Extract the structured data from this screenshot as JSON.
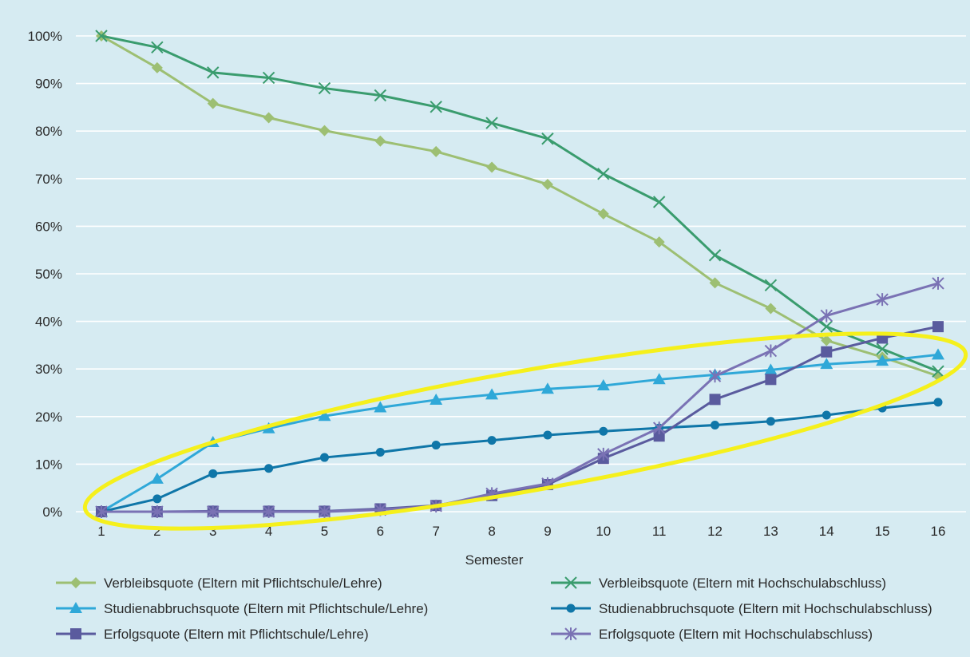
{
  "chart_data": {
    "type": "line",
    "title": "",
    "xlabel": "Semester",
    "ylabel": "",
    "x": [
      1,
      2,
      3,
      4,
      5,
      6,
      7,
      8,
      9,
      10,
      11,
      12,
      13,
      14,
      15,
      16
    ],
    "x_tick_labels": [
      "1",
      "2",
      "3",
      "4",
      "5",
      "6",
      "7",
      "8",
      "9",
      "10",
      "11",
      "12",
      "13",
      "14",
      "15",
      "16"
    ],
    "y_tick_labels": [
      "0%",
      "10%",
      "20%",
      "30%",
      "40%",
      "50%",
      "60%",
      "70%",
      "80%",
      "90%",
      "100%"
    ],
    "ylim": [
      0,
      100
    ],
    "grid": "horizontal",
    "legend_position": "bottom",
    "series": [
      {
        "name": "Verbleibsquote (Eltern mit Pflichtschule/Lehre)",
        "color": "#9dbf73",
        "marker": "diamond",
        "values": [
          100,
          93.3,
          85.8,
          82.8,
          80.1,
          77.9,
          75.7,
          72.4,
          68.8,
          62.6,
          56.7,
          48.1,
          42.7,
          36,
          32.5,
          28.5
        ]
      },
      {
        "name": "Verbleibsquote (Eltern mit Hochschulabschluss)",
        "color": "#3a9c6e",
        "marker": "x",
        "values": [
          100,
          97.6,
          92.3,
          91.2,
          89,
          87.5,
          85.1,
          81.7,
          78.4,
          71,
          65.1,
          53.9,
          47.6,
          38.9,
          34.2,
          29.5
        ]
      },
      {
        "name": "Studienabbruchsquote (Eltern mit Pflichtschule/Lehre)",
        "color": "#2fa8d8",
        "marker": "triangle",
        "values": [
          0,
          6.9,
          14.6,
          17.5,
          20.1,
          21.9,
          23.5,
          24.6,
          25.8,
          26.5,
          27.8,
          28.8,
          29.8,
          31,
          31.7,
          33
        ]
      },
      {
        "name": "Studienabbruchsquote (Eltern mit Hochschulabschluss)",
        "color": "#0f76a8",
        "marker": "circle",
        "values": [
          0,
          2.7,
          8,
          9.1,
          11.4,
          12.5,
          14,
          15,
          16.1,
          16.9,
          17.6,
          18.2,
          19,
          20.3,
          21.8,
          23
        ]
      },
      {
        "name": "Erfolgsquote (Eltern mit Pflichtschule/Lehre)",
        "color": "#5a5b9e",
        "marker": "square",
        "values": [
          0,
          0,
          0.1,
          0.1,
          0.1,
          0.6,
          1.3,
          3.4,
          5.7,
          11.2,
          15.9,
          23.6,
          27.8,
          33.6,
          36.5,
          38.9
        ]
      },
      {
        "name": "Erfolgsquote (Eltern mit Hochschulabschluss)",
        "color": "#7a72b4",
        "marker": "star",
        "values": [
          0,
          0,
          0,
          0,
          0,
          0.4,
          1.2,
          3.8,
          5.9,
          12.1,
          17.6,
          28.5,
          33.8,
          41.2,
          44.6,
          48
        ]
      }
    ]
  }
}
